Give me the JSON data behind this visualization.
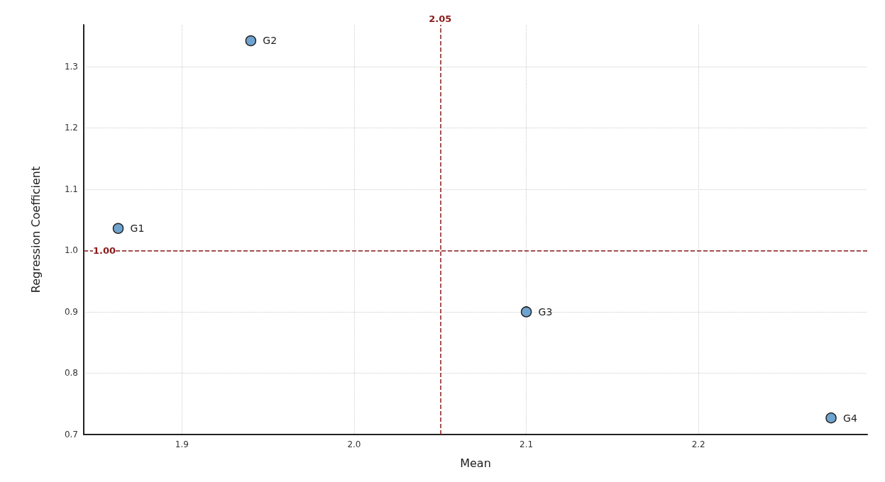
{
  "chart_data": {
    "type": "scatter",
    "xlabel": "Mean",
    "ylabel": "Regression Coefficient",
    "x": [
      1.863,
      1.94,
      2.1,
      2.277
    ],
    "values": [
      1.036,
      1.342,
      0.9,
      0.727
    ],
    "color": "#6fa3d0",
    "marker": "circle",
    "grid": true,
    "xlim": [
      1.843,
      2.298
    ],
    "xticks": [
      1.9,
      {
        "value": 2.0,
        "label": "2.0"
      },
      2.1,
      2.2
    ],
    "ylim": [
      0.7,
      1.368
    ],
    "yticks": [
      0.7,
      0.8,
      0.9,
      {
        "value": 1.0,
        "label": "1.0"
      },
      1.1,
      1.2,
      1.3
    ],
    "ref_lines": [
      {
        "axis": "x",
        "value": 2.05,
        "label": "2.05",
        "color": "#8b1a1a",
        "line_style": "dashed"
      },
      {
        "axis": "y",
        "value": 1.0,
        "label": "1.00",
        "color": "#8b1a1a",
        "line_style": "dashed"
      }
    ],
    "annotations": [
      {
        "text": "G1",
        "x": 1.863,
        "y": 1.036
      },
      {
        "text": "G2",
        "x": 1.94,
        "y": 1.342
      },
      {
        "text": "G3",
        "x": 2.1,
        "y": 0.9
      },
      {
        "text": "G4",
        "x": 2.277,
        "y": 0.727
      }
    ]
  }
}
